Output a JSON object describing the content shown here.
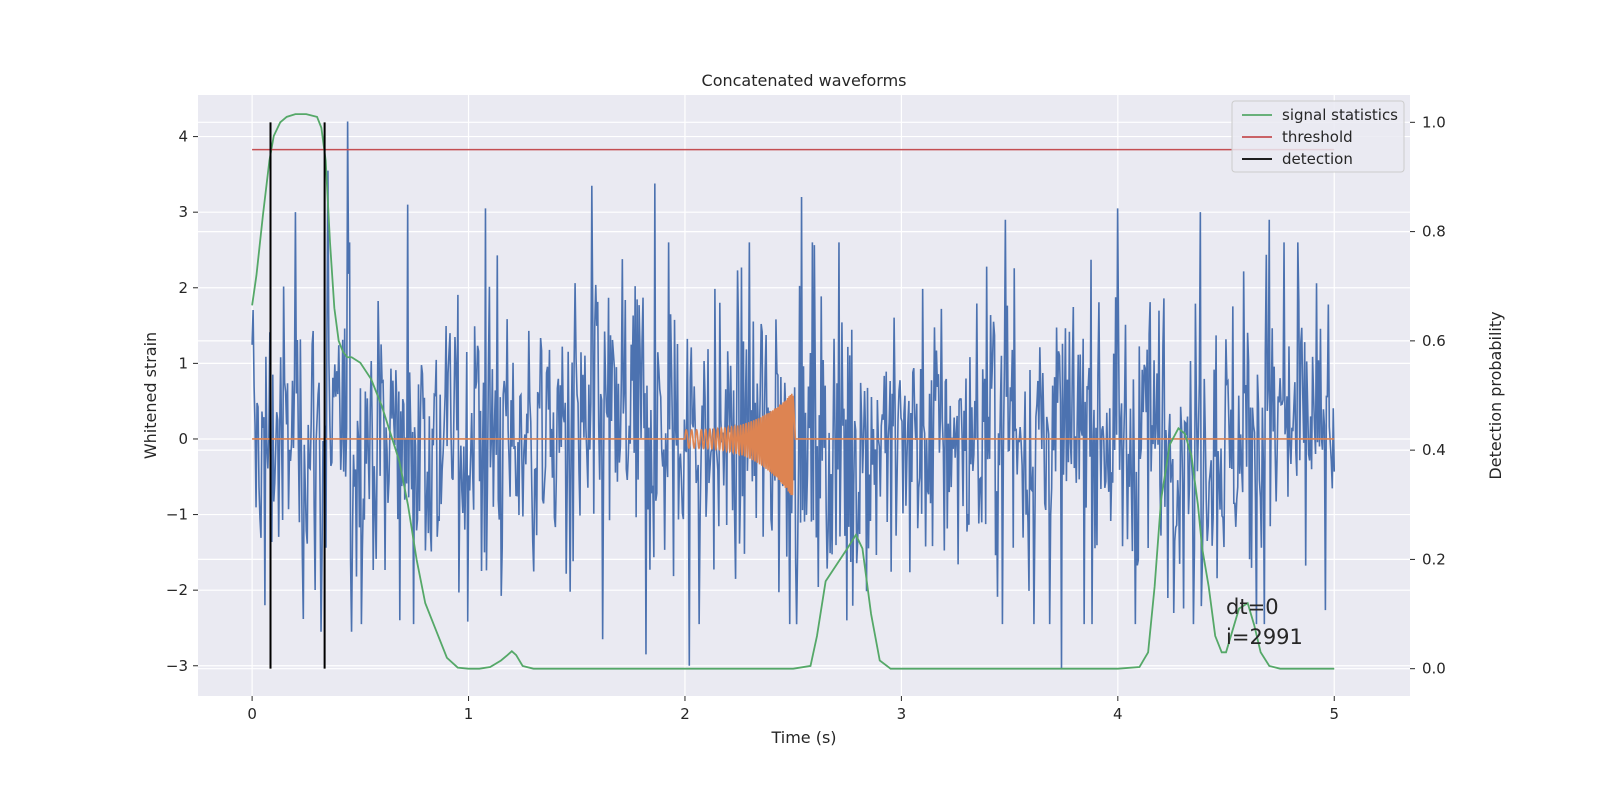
{
  "chart_data": {
    "type": "line",
    "title": "Concatenated waveforms",
    "xlabel": "Time (s)",
    "ylabel_left": "Whitened strain",
    "ylabel_right": "Detection probability",
    "xlim": [
      -0.25,
      5.35
    ],
    "ylim_left": [
      -3.4,
      4.55
    ],
    "ylim_right": [
      -0.05,
      1.05
    ],
    "xticks": [
      0,
      1,
      2,
      3,
      4,
      5
    ],
    "xtick_labels": [
      "0",
      "1",
      "2",
      "3",
      "4",
      "5"
    ],
    "yticks_left": [
      -3,
      -2,
      -1,
      0,
      1,
      2,
      3,
      4
    ],
    "ytick_labels_left": [
      "−3",
      "−2",
      "−1",
      "0",
      "1",
      "2",
      "3",
      "4"
    ],
    "yticks_right": [
      0.0,
      0.2,
      0.4,
      0.6,
      0.8,
      1.0
    ],
    "ytick_labels_right": [
      "0.0",
      "0.2",
      "0.4",
      "0.6",
      "0.8",
      "1.0"
    ],
    "grid": true,
    "legend_position": "top-right",
    "colors": {
      "background": "#eaeaf2",
      "grid": "#ffffff",
      "noise": "#4c72b0",
      "template": "#dd8452",
      "statistics": "#55a868",
      "threshold": "#c44e52",
      "detection": "#000000"
    },
    "noise": {
      "x_range": [
        0,
        5
      ],
      "sample_count": 1100,
      "typical_amplitude": 1.3,
      "ymin": -3.05,
      "ymax": 4.2,
      "peaks": [
        {
          "x": 0.44,
          "y": 4.2
        },
        {
          "x": 0.35,
          "y": 3.55
        },
        {
          "x": 0.72,
          "y": 3.1
        },
        {
          "x": 1.08,
          "y": 3.05
        },
        {
          "x": 1.57,
          "y": 3.35
        },
        {
          "x": 1.86,
          "y": 3.38
        },
        {
          "x": 2.54,
          "y": 3.2
        },
        {
          "x": 4.0,
          "y": 3.05
        },
        {
          "x": 4.38,
          "y": 3.0
        },
        {
          "x": 4.7,
          "y": 2.9
        },
        {
          "x": 3.48,
          "y": 2.9
        },
        {
          "x": 0.2,
          "y": 3.0
        }
      ],
      "troughs": [
        {
          "x": 0.32,
          "y": -2.55
        },
        {
          "x": 0.46,
          "y": -2.55
        },
        {
          "x": 1.62,
          "y": -2.65
        },
        {
          "x": 1.82,
          "y": -2.85
        },
        {
          "x": 2.02,
          "y": -3.0
        },
        {
          "x": 3.74,
          "y": -3.05
        },
        {
          "x": 0.06,
          "y": -2.2
        },
        {
          "x": 4.35,
          "y": -2.45
        },
        {
          "x": 2.75,
          "y": -2.4
        }
      ]
    },
    "series": [
      {
        "name": "signal statistics",
        "axis": "right",
        "x": [
          0.0,
          0.02,
          0.05,
          0.08,
          0.1,
          0.13,
          0.16,
          0.2,
          0.25,
          0.3,
          0.32,
          0.34,
          0.36,
          0.38,
          0.4,
          0.42,
          0.44,
          0.46,
          0.5,
          0.55,
          0.6,
          0.64,
          0.68,
          0.72,
          0.76,
          0.8,
          0.85,
          0.9,
          0.95,
          1.0,
          1.05,
          1.1,
          1.15,
          1.18,
          1.2,
          1.22,
          1.25,
          1.3,
          1.5,
          2.0,
          2.5,
          2.58,
          2.61,
          2.65,
          2.7,
          2.75,
          2.79,
          2.82,
          2.86,
          2.9,
          2.95,
          3.0,
          3.5,
          4.0,
          4.1,
          4.14,
          4.17,
          4.2,
          4.24,
          4.28,
          4.31,
          4.34,
          4.37,
          4.39,
          4.42,
          4.45,
          4.48,
          4.5,
          4.53,
          4.56,
          4.6,
          4.63,
          4.66,
          4.7,
          4.75,
          4.8,
          5.0
        ],
        "y": [
          0.665,
          0.72,
          0.83,
          0.93,
          0.975,
          1.0,
          1.01,
          1.015,
          1.015,
          1.01,
          0.99,
          0.93,
          0.78,
          0.66,
          0.6,
          0.58,
          0.57,
          0.57,
          0.56,
          0.53,
          0.48,
          0.43,
          0.38,
          0.3,
          0.2,
          0.12,
          0.07,
          0.02,
          0.002,
          0.0,
          0.0,
          0.003,
          0.015,
          0.025,
          0.032,
          0.025,
          0.005,
          0.0,
          0.0,
          0.0,
          0.0,
          0.005,
          0.06,
          0.16,
          0.19,
          0.22,
          0.245,
          0.22,
          0.1,
          0.015,
          0.0,
          0.0,
          0.0,
          0.0,
          0.003,
          0.03,
          0.15,
          0.31,
          0.41,
          0.44,
          0.43,
          0.39,
          0.3,
          0.22,
          0.15,
          0.06,
          0.03,
          0.03,
          0.07,
          0.11,
          0.12,
          0.08,
          0.03,
          0.005,
          0.0,
          0.0,
          0.0
        ]
      },
      {
        "name": "threshold",
        "axis": "right",
        "x": [
          0,
          5
        ],
        "y": [
          0.95,
          0.95
        ]
      },
      {
        "name": "detection",
        "axis": "right",
        "x": [
          0.085,
          0.335
        ],
        "y_range": [
          0.0,
          1.0
        ]
      }
    ],
    "template": {
      "axis": "left",
      "chirp_start": 2.0,
      "chirp_end": 2.5,
      "start_amplitude": 0.12,
      "end_amplitude_high": 0.62,
      "end_amplitude_low": -0.78,
      "start_period": 0.028,
      "end_period": 0.006
    },
    "annotations": [
      {
        "text": "dt=0",
        "x": 4.5,
        "y_right": 0.1
      },
      {
        "text": "i=2991",
        "x": 4.5,
        "y_right": 0.045
      }
    ]
  }
}
